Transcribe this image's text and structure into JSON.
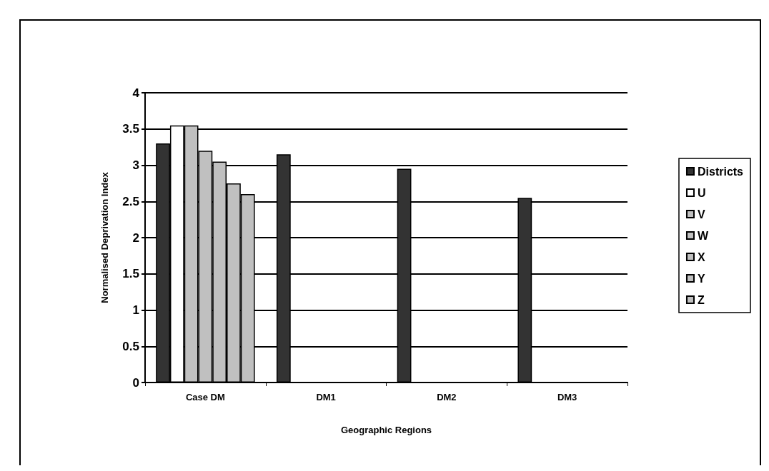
{
  "chart_data": {
    "type": "bar",
    "xlabel": "Geographic Regions",
    "ylabel": "Normalised Deprivation Index",
    "categories": [
      "Case DM",
      "DM1",
      "DM2",
      "DM3"
    ],
    "series": [
      {
        "name": "Districts",
        "color": "#333333",
        "values": [
          3.3,
          3.15,
          2.95,
          2.55
        ]
      },
      {
        "name": "U",
        "color": "#ffffff",
        "values": [
          3.55,
          null,
          null,
          null
        ]
      },
      {
        "name": "V",
        "color": "#c0c0c0",
        "values": [
          3.55,
          null,
          null,
          null
        ]
      },
      {
        "name": "W",
        "color": "#c0c0c0",
        "values": [
          3.2,
          null,
          null,
          null
        ]
      },
      {
        "name": "X",
        "color": "#c0c0c0",
        "values": [
          3.05,
          null,
          null,
          null
        ]
      },
      {
        "name": "Y",
        "color": "#c0c0c0",
        "values": [
          2.75,
          null,
          null,
          null
        ]
      },
      {
        "name": "Z",
        "color": "#c0c0c0",
        "values": [
          2.6,
          null,
          null,
          null
        ]
      }
    ],
    "ylim": [
      0,
      4
    ],
    "yticks": [
      0,
      0.5,
      1,
      1.5,
      2,
      2.5,
      3,
      3.5,
      4
    ],
    "grid": "y",
    "legend": "right"
  }
}
